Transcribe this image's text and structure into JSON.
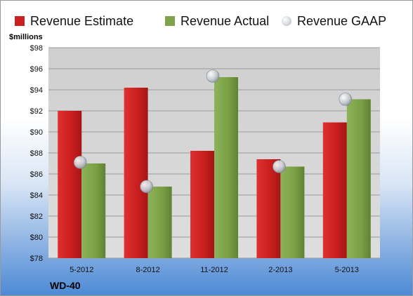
{
  "chart_data": {
    "type": "bar",
    "ylabel": "$millions",
    "ylim": [
      78,
      98
    ],
    "ytick_step": 2,
    "yticks": [
      "$78",
      "$80",
      "$82",
      "$84",
      "$86",
      "$88",
      "$90",
      "$92",
      "$94",
      "$96",
      "$98"
    ],
    "categories": [
      "5-2012",
      "8-2012",
      "11-2012",
      "2-2013",
      "5-2013"
    ],
    "series": [
      {
        "name": "Revenue Estimate",
        "kind": "bar",
        "color": "#cc1f1f",
        "values": [
          92.0,
          94.2,
          88.2,
          87.4,
          90.9
        ]
      },
      {
        "name": "Revenue Actual",
        "kind": "bar",
        "color": "#7fa34a",
        "values": [
          87.0,
          84.8,
          95.2,
          86.7,
          93.1
        ]
      },
      {
        "name": "Revenue GAAP",
        "kind": "marker",
        "color": "#c8cdd4",
        "values": [
          87.1,
          84.8,
          95.3,
          86.7,
          93.1
        ]
      }
    ],
    "grid": true,
    "legend": "top",
    "footer_label": "WD-40"
  }
}
